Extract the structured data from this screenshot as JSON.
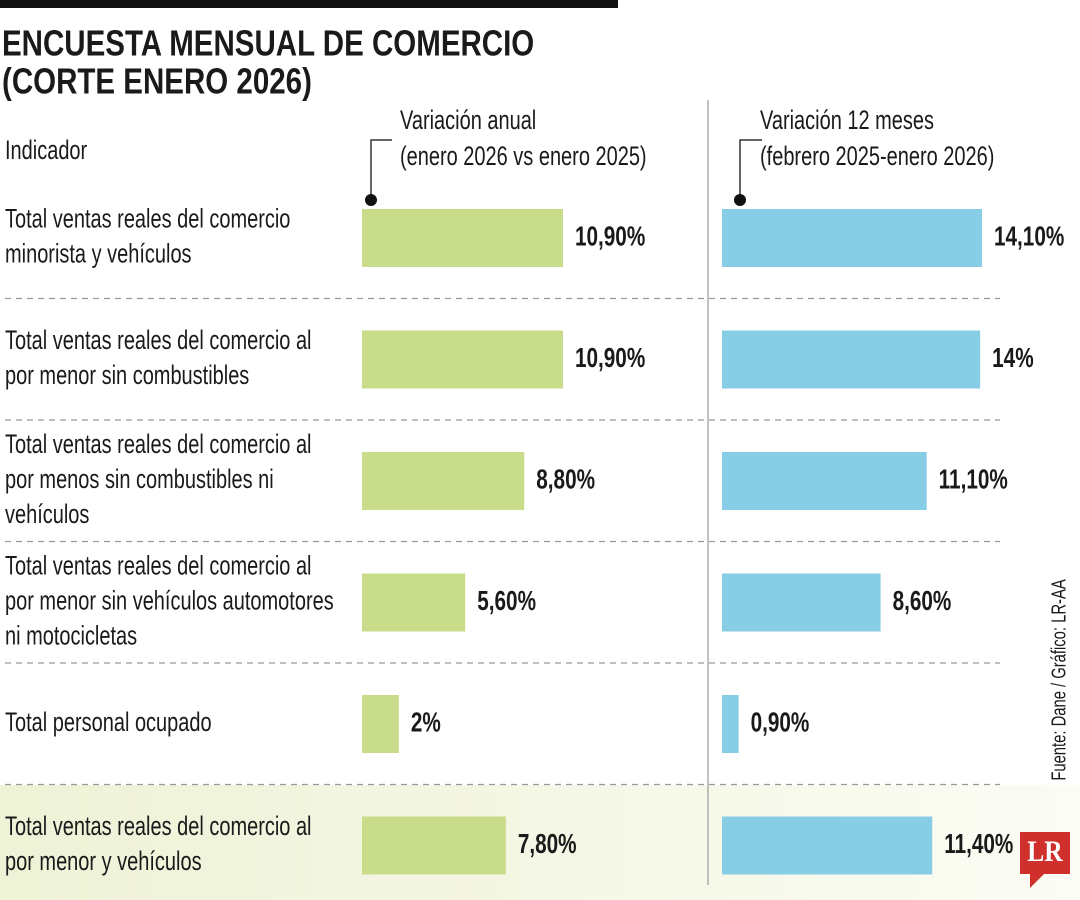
{
  "chart_data": {
    "type": "bar",
    "title": [
      "ENCUESTA MENSUAL DE COMERCIO",
      "(CORTE ENERO 2026)"
    ],
    "category_header": "Indicador",
    "categories": [
      "Total ventas reales del comercio minorista y vehículos",
      "Total ventas reales del comercio al por menor sin combustibles",
      "Total ventas reales del comercio al por menos sin combustibles ni vehículos",
      "Total ventas reales del comercio al por menor sin vehículos automotores ni motocicletas",
      "Total personal ocupado",
      "Total ventas reales del comercio al por menor y vehículos"
    ],
    "series": [
      {
        "name": "Variación anual",
        "period": "(enero 2026 vs enero 2025)",
        "color": "#c8dc8a",
        "values": [
          10.9,
          10.9,
          8.8,
          5.6,
          2,
          7.8
        ],
        "value_labels": [
          "10,90%",
          "10,90%",
          "8,80%",
          "5,60%",
          "2%",
          "7,80%"
        ]
      },
      {
        "name": "Variación 12 meses",
        "period": "(febrero 2025-enero 2026)",
        "color": "#87cde5",
        "values": [
          14.1,
          14,
          11.1,
          8.6,
          0.9,
          11.4
        ],
        "value_labels": [
          "14,10%",
          "14%",
          "11,10%",
          "8,60%",
          "0,90%",
          "11,40%"
        ]
      }
    ],
    "source": "Fuente: Dane / Gráfico: LR-AA",
    "logo": "LR"
  }
}
